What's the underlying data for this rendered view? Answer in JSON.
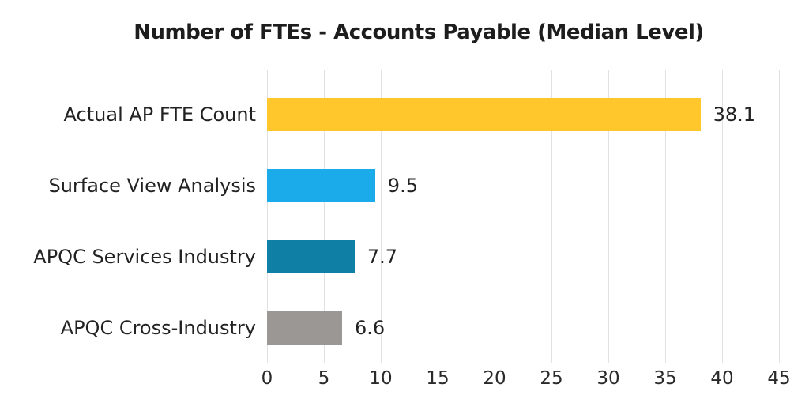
{
  "chart_data": {
    "type": "bar",
    "orientation": "horizontal",
    "title": "Number of FTEs - Accounts Payable (Median Level)",
    "categories": [
      "Actual AP FTE Count",
      "Surface View Analysis",
      "APQC Services Industry",
      "APQC Cross-Industry"
    ],
    "values": [
      38.1,
      9.5,
      7.7,
      6.6
    ],
    "value_labels": [
      "38.1",
      "9.5",
      "7.7",
      "6.6"
    ],
    "bar_colors": [
      "#FFC72C",
      "#1CABEA",
      "#0F7FA5",
      "#9B9795"
    ],
    "xlabel": "",
    "ylabel": "",
    "xlim": [
      0,
      45
    ],
    "x_ticks": [
      0,
      5,
      10,
      15,
      20,
      25,
      30,
      35,
      40,
      45
    ],
    "grid": true,
    "gridline_color": "#E1E1E1",
    "text_color": "#222222",
    "background_color": "#FFFFFF",
    "legend_position": "none"
  }
}
